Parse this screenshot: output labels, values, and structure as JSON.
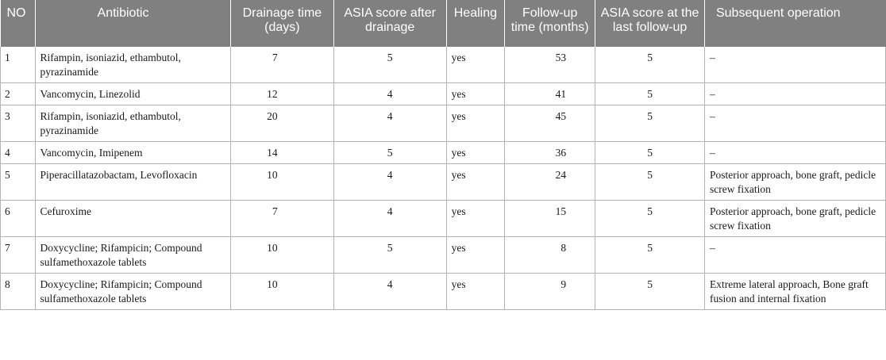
{
  "table": {
    "headers": [
      "NO",
      "Antibiotic",
      "Drainage time (days)",
      "ASIA score after drainage",
      "Healing",
      "Follow-up time (months)",
      "ASIA score at the last follow-up",
      "Subsequent operation"
    ],
    "rows": [
      [
        "1",
        "Rifampin, isoniazid, ethambutol, pyrazinamide",
        "7",
        "5",
        "yes",
        "53",
        "5",
        "–"
      ],
      [
        "2",
        "Vancomycin, Linezolid",
        "12",
        "4",
        "yes",
        "41",
        "5",
        "–"
      ],
      [
        "3",
        "Rifampin, isoniazid, ethambutol, pyrazinamide",
        "20",
        "4",
        "yes",
        "45",
        "5",
        "–"
      ],
      [
        "4",
        "Vancomycin, Imipenem",
        "14",
        "5",
        "yes",
        "36",
        "5",
        "–"
      ],
      [
        "5",
        "Piperacillatazobactam, Levofloxacin",
        "10",
        "4",
        "yes",
        "24",
        "5",
        "Posterior approach, bone graft, pedicle screw fixation"
      ],
      [
        "6",
        "Cefuroxime",
        "7",
        "4",
        "yes",
        "15",
        "5",
        "Posterior approach, bone graft, pedicle screw fixation"
      ],
      [
        "7",
        "Doxycycline; Rifampicin; Compound sulfamethoxazole tablets",
        "10",
        "5",
        "yes",
        "8",
        "5",
        "–"
      ],
      [
        "8",
        "Doxycycline; Rifampicin; Compound sulfamethoxazole tablets",
        "10",
        "4",
        "yes",
        "9",
        "5",
        "Extreme lateral approach, Bone graft fusion and internal fixation"
      ]
    ]
  }
}
